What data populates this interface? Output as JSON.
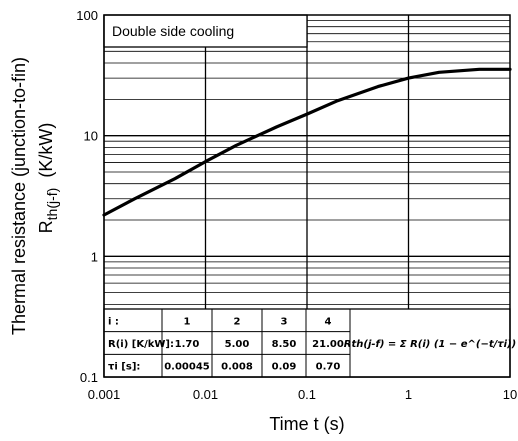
{
  "chart_data": {
    "type": "line",
    "title": "",
    "annotation": "Double side cooling",
    "xlabel": "Time  t  (s)",
    "ylabel_line1": "Thermal resistance (junction-to-fin)",
    "ylabel_line2_main": "R",
    "ylabel_line2_sub": "th(j-f)",
    "ylabel_line2_unit": "(K/kW)",
    "x_scale": "log",
    "y_scale": "log",
    "xlim": [
      0.001,
      10
    ],
    "ylim": [
      0.1,
      100
    ],
    "x_ticks": [
      "0.001",
      "0.01",
      "0.1",
      "1",
      "10"
    ],
    "y_ticks": [
      "0.1",
      "1",
      "10",
      "100"
    ],
    "grid": true,
    "series": [
      {
        "x": [
          0.001,
          0.002,
          0.005,
          0.01,
          0.02,
          0.05,
          0.1,
          0.2,
          0.5,
          1,
          2,
          5,
          10
        ],
        "y": [
          2.2,
          3.0,
          4.4,
          6.1,
          8.3,
          11.8,
          15.1,
          19.5,
          25.5,
          30.0,
          33.5,
          35.5,
          35.5
        ]
      }
    ],
    "rth_table": {
      "row_labels": [
        "i :",
        "R(i) [K/kW]:",
        "τi [s]:"
      ],
      "i": [
        "1",
        "2",
        "3",
        "4"
      ],
      "R": [
        "1.70",
        "5.00",
        "8.50",
        "21.00"
      ],
      "tau": [
        "0.00045",
        "0.008",
        "0.09",
        "0.70"
      ],
      "formula": "Rth(j-f) = Σ R(i) (1 − e^(−t/τi))"
    }
  }
}
